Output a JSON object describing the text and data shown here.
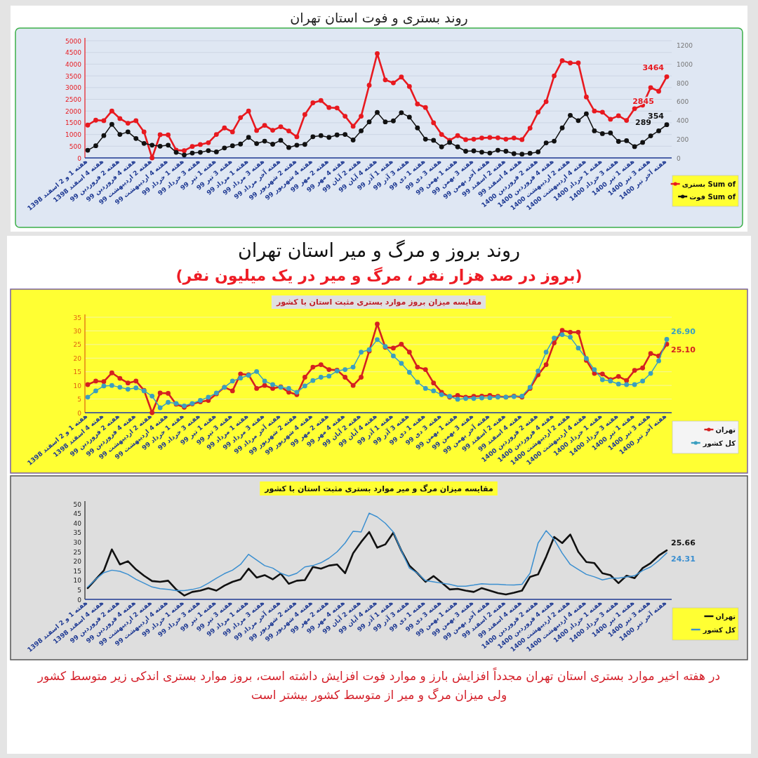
{
  "chart_data": [
    {
      "type": "line",
      "title": "روند بستری و فوت استان تهران",
      "categories": [
        "هفته 1 و 2 اسفند 1398",
        null,
        "هفته 4 اسفند 1398",
        null,
        "هفته 2 فروردین 99",
        null,
        "هفته 4 فروردین 99",
        null,
        "هفته 2 اردیبهشت 99",
        null,
        "هفته 4 اردیبهشت 99",
        null,
        "هفته 1 خرداد 99",
        null,
        "هفته 3 خرداد 99",
        null,
        "هفته 1 تیر 99",
        null,
        "هفته 3 تیر 99",
        null,
        "هفته 1 مرداد 99",
        null,
        "هفته 3 مرداد 99",
        null,
        "هفته آخر مرداد 99",
        null,
        "هفته 2 شهریور 99",
        null,
        "هفته 4 شهریور 99",
        null,
        "هفته 2 مهر 99",
        null,
        "هفته 4 مهر 99",
        null,
        "هفته 2 آبان 99",
        null,
        "هفته 4 آبان 99",
        null,
        "هفته 1 آذر 99",
        null,
        "هفته 3 آذر 99",
        null,
        "هفته 1 دی 99",
        null,
        "هفته 3 دی 99",
        null,
        "هفته 1 بهمن 99",
        null,
        "هفته 3 بهمن 99",
        null,
        "هفته آخر بهمن 99",
        null,
        "هفته 2 اسفند 99",
        null,
        "هفته 4 اسفند 99",
        null,
        "هفته 2 فروردین 1400",
        null,
        "هفته 4 فروردین 1400",
        null,
        "هفته 2 اردیبهشت 1400",
        null,
        "هفته 4 اردیبهشت 1400",
        null,
        "هفته 1 خرداد 1400",
        null,
        "هفته 3 خرداد 1400",
        null,
        "هفته 1 تیر 1400",
        null,
        "هفته 3 تیر 1400",
        null,
        "هفته آخر تیر 1400"
      ],
      "series": [
        {
          "name": "Sum of بستری",
          "color": "#e8191f",
          "values": [
            1400,
            1610,
            1590,
            2000,
            1680,
            1480,
            1590,
            1110,
            0,
            990,
            980,
            330,
            310,
            490,
            570,
            650,
            1000,
            1280,
            1110,
            1720,
            2000,
            1170,
            1390,
            1180,
            1330,
            1150,
            900,
            1850,
            2350,
            2450,
            2150,
            2130,
            1780,
            1350,
            1780,
            3100,
            4450,
            3330,
            3200,
            3450,
            3050,
            2300,
            2150,
            1500,
            1000,
            750,
            950,
            780,
            800,
            850,
            870,
            860,
            800,
            850,
            780,
            1270,
            1950,
            2400,
            3500,
            4150,
            4050,
            4050,
            2600,
            2000,
            1950,
            1650,
            1800,
            1600,
            2100,
            2250,
            3000,
            2845,
            3464
          ],
          "value_labels": [
            null,
            null,
            null,
            null,
            null,
            null,
            null,
            null,
            null,
            null,
            null,
            null,
            null,
            null,
            null,
            null,
            null,
            null,
            null,
            null,
            null,
            null,
            null,
            null,
            null,
            null,
            null,
            null,
            null,
            null,
            null,
            null,
            null,
            null,
            null,
            null,
            null,
            null,
            null,
            null,
            null,
            null,
            null,
            null,
            null,
            null,
            null,
            null,
            null,
            null,
            null,
            null,
            null,
            null,
            null,
            null,
            null,
            null,
            null,
            null,
            null,
            null,
            null,
            null,
            null,
            null,
            null,
            null,
            null,
            null,
            null,
            "2845",
            "3464"
          ]
        },
        {
          "name": "Sum of فوت",
          "color": "#111111",
          "axis": "y2",
          "values": [
            82,
            130,
            238,
            358,
            250,
            278,
            207,
            155,
            136,
            125,
            136,
            59,
            31,
            52,
            59,
            78,
            64,
            106,
            130,
            148,
            219,
            153,
            179,
            146,
            188,
            111,
            136,
            144,
            226,
            238,
            219,
            245,
            250,
            191,
            289,
            384,
            485,
            384,
            395,
            482,
            435,
            320,
            200,
            188,
            118,
            165,
            118,
            71,
            75,
            61,
            52,
            82,
            71,
            45,
            40,
            49,
            64,
            160,
            179,
            320,
            454,
            398,
            471,
            289,
            259,
            266,
            176,
            184,
            120,
            165,
            235,
            289,
            354
          ],
          "value_labels": [
            null,
            null,
            null,
            null,
            null,
            null,
            null,
            null,
            null,
            null,
            null,
            null,
            null,
            null,
            null,
            null,
            null,
            null,
            null,
            null,
            null,
            null,
            null,
            null,
            null,
            null,
            null,
            null,
            null,
            null,
            null,
            null,
            null,
            null,
            null,
            null,
            null,
            null,
            null,
            null,
            null,
            null,
            null,
            null,
            null,
            null,
            null,
            null,
            null,
            null,
            null,
            null,
            null,
            null,
            null,
            null,
            null,
            null,
            null,
            null,
            null,
            null,
            null,
            null,
            null,
            null,
            null,
            null,
            null,
            null,
            null,
            "289",
            "354"
          ]
        }
      ],
      "ylim": [
        0,
        5000
      ],
      "yticks": [
        0,
        500,
        1000,
        1500,
        2000,
        2500,
        3000,
        3500,
        4000,
        4500,
        5000
      ],
      "y2lim": [
        0,
        1250
      ],
      "y2ticks": [
        0,
        200,
        400,
        600,
        800,
        1000,
        1200
      ],
      "grid": "y",
      "legend": "bottom right",
      "marker": "circle"
    },
    {
      "type": "line",
      "title": "روند بروز و مرگ و میر استان تهران",
      "subtitle": "(بروز در صد هزار نفر ، مرگ و میر در یک میلیون نفر)",
      "annotations": [
        "مقایسه میزان بروز موارد بستری مثبت استان با کشور"
      ],
      "categories": [
        "هفته 1 و 2 اسفند 1398",
        null,
        "هفته 4 اسفند 1398",
        null,
        "هفته 2 فروردین 99",
        null,
        "هفته 4 فروردین 99",
        null,
        "هفته 2 اردیبهشت 99",
        null,
        "هفته 4 اردیبهشت 99",
        null,
        "هفته 1 خرداد 99",
        null,
        "هفته 3 خرداد 99",
        null,
        "هفته 1 تیر 99",
        null,
        "هفته 3 تیر 99",
        null,
        "هفته 1 مرداد 99",
        null,
        "هفته 3 مرداد 99",
        null,
        "هفته آخر مرداد 99",
        null,
        "هفته 2 شهریور 99",
        null,
        "هفته 4 شهریور 99",
        null,
        "هفته 2 مهر 99",
        null,
        "هفته 4 مهر 99",
        null,
        "هفته 2 آبان 99",
        null,
        "هفته 4 آبان 99",
        null,
        "هفته 1 آذر 99",
        null,
        "هفته 3 آذر 99",
        null,
        "هفته 1 دی 99",
        null,
        "هفته 3 دی 99",
        null,
        "هفته 1 بهمن 99",
        null,
        "هفته 3 بهمن 99",
        null,
        "هفته آخر بهمن 99",
        null,
        "هفته 2 اسفند 99",
        null,
        "هفته 4 اسفند 99",
        null,
        "هفته 2 فروردین 1400",
        null,
        "هفته 4 فروردین 1400",
        null,
        "هفته 2 اردیبهشت 1400",
        null,
        "هفته 4 اردیبهشت 1400",
        null,
        "هفته 1 خرداد 1400",
        null,
        "هفته 3 خرداد 1400",
        null,
        "هفته 1 تیر 1400",
        null,
        "هفته 3 تیر 1400",
        null,
        "هفته آخر تیر 1400"
      ],
      "series": [
        {
          "name": "تهران",
          "color": "#d42020",
          "values": [
            10.3,
            11.6,
            11.4,
            14.6,
            12.6,
            10.9,
            11.6,
            8.2,
            0,
            7.2,
            7.1,
            3.1,
            2.0,
            3.2,
            4.0,
            4.5,
            6.9,
            9.3,
            8.0,
            14.2,
            13.9,
            8.9,
            10.0,
            8.9,
            9.5,
            7.5,
            6.6,
            13.0,
            16.7,
            17.6,
            15.8,
            15.6,
            13.0,
            10.0,
            13.0,
            22.6,
            32.5,
            24.0,
            23.7,
            25.1,
            22.2,
            16.7,
            15.8,
            10.9,
            7.5,
            5.7,
            6.3,
            5.7,
            6.0,
            6.1,
            6.3,
            6.0,
            5.7,
            6.1,
            5.7,
            8.9,
            13.9,
            17.6,
            25.6,
            30.2,
            29.5,
            29.5,
            19.2,
            14.4,
            14.2,
            12.1,
            13.3,
            11.8,
            15.5,
            16.4,
            21.7,
            20.8,
            25.1
          ],
          "value_labels": [
            null,
            null,
            null,
            null,
            null,
            null,
            null,
            null,
            null,
            null,
            null,
            null,
            null,
            null,
            null,
            null,
            null,
            null,
            null,
            null,
            null,
            null,
            null,
            null,
            null,
            null,
            null,
            null,
            null,
            null,
            null,
            null,
            null,
            null,
            null,
            null,
            null,
            null,
            null,
            null,
            null,
            null,
            null,
            null,
            null,
            null,
            null,
            null,
            null,
            null,
            null,
            null,
            null,
            null,
            null,
            null,
            null,
            null,
            null,
            null,
            null,
            null,
            null,
            null,
            null,
            null,
            null,
            null,
            null,
            null,
            null,
            null,
            "25.10"
          ]
        },
        {
          "name": "کل کشور",
          "color": "#3a9fc0",
          "values": [
            5.7,
            8.0,
            9.8,
            10.0,
            9.3,
            8.6,
            9.1,
            8.0,
            6.1,
            1.8,
            3.8,
            3.4,
            2.5,
            3.4,
            4.5,
            5.7,
            7.2,
            9.3,
            11.6,
            12.7,
            13.7,
            15.1,
            11.6,
            10.3,
            9.3,
            8.9,
            7.5,
            9.8,
            11.8,
            13.0,
            13.4,
            15.3,
            15.8,
            16.7,
            22.2,
            23.1,
            26.8,
            24.3,
            20.8,
            18.1,
            14.8,
            11.2,
            8.9,
            8.0,
            6.6,
            6.0,
            4.9,
            5.2,
            5.2,
            5.4,
            5.5,
            5.7,
            5.7,
            5.9,
            6.1,
            9.3,
            15.3,
            22.2,
            27.4,
            28.6,
            27.7,
            23.7,
            19.9,
            15.8,
            12.1,
            11.6,
            10.5,
            10.3,
            10.3,
            11.6,
            14.4,
            19.0,
            26.9
          ],
          "value_labels": [
            null,
            null,
            null,
            null,
            null,
            null,
            null,
            null,
            null,
            null,
            null,
            null,
            null,
            null,
            null,
            null,
            null,
            null,
            null,
            null,
            null,
            null,
            null,
            null,
            null,
            null,
            null,
            null,
            null,
            null,
            null,
            null,
            null,
            null,
            null,
            null,
            null,
            null,
            null,
            null,
            null,
            null,
            null,
            null,
            null,
            null,
            null,
            null,
            null,
            null,
            null,
            null,
            null,
            null,
            null,
            null,
            null,
            null,
            null,
            null,
            null,
            null,
            null,
            null,
            null,
            null,
            null,
            null,
            null,
            null,
            null,
            null,
            "26.90"
          ]
        }
      ],
      "ylim": [
        0,
        35
      ],
      "yticks": [
        0,
        5,
        10,
        15,
        20,
        25,
        30,
        35
      ],
      "grid": "y",
      "legend": "bottom right",
      "marker": "circle"
    },
    {
      "type": "line",
      "title": "مقایسه میزان مرگ و میر موارد بستری مثبت استان با کشور",
      "annotations": [
        "در هفته اخیر موارد بستری استان تهران مجدداً افزایش بارز و موارد فوت افزایش داشته است، بروز موارد بستری اندکی زیر متوسط کشور ولی میزان مرگ و میر از متوسط کشور بیشتر است"
      ],
      "categories": [
        "هفته 1 و 2 اسفند 1398",
        null,
        "هفته 4 اسفند 1398",
        null,
        "هفته 2 فروردین 99",
        null,
        "هفته 4 فروردین 99",
        null,
        "هفته 2 اردیبهشت 99",
        null,
        "هفته 4 اردیبهشت 99",
        null,
        "هفته 1 خرداد 99",
        null,
        "هفته 3 خرداد 99",
        null,
        "هفته 1 تیر 99",
        null,
        "هفته 3 تیر 99",
        null,
        "هفته 1 مرداد 99",
        null,
        "هفته 3 مرداد 99",
        null,
        "هفته آخر مرداد 99",
        null,
        "هفته 2 شهریور 99",
        null,
        "هفته 4 شهریور 99",
        null,
        "هفته 2 مهر 99",
        null,
        "هفته 4 مهر 99",
        null,
        "هفته 2 آبان 99",
        null,
        "هفته 4 آبان 99",
        null,
        "هفته 1 آذر 99",
        null,
        "هفته 3 آذر 99",
        null,
        "هفته 1 دی 99",
        null,
        "هفته 3 دی 99",
        null,
        "هفته 1 بهمن 99",
        null,
        "هفته 3 بهمن 99",
        null,
        "هفته آخر بهمن 99",
        null,
        "هفته 2 اسفند 99",
        null,
        "هفته 4 اسفند 99",
        null,
        "هفته 2 فروردین 1400",
        null,
        "هفته 4 فروردین 1400",
        null,
        "هفته 2 اردیبهشت 1400",
        null,
        "هفته 4 اردیبهشت 1400",
        null,
        "هفته 1 خرداد 1400",
        null,
        "هفته 3 خرداد 1400",
        null,
        "هفته 1 تیر 1400",
        null,
        "هفته 3 تیر 1400",
        null,
        "هفته آخر تیر 1400"
      ],
      "series": [
        {
          "name": "تهران",
          "color": "#111111",
          "values": [
            5.9,
            10.5,
            15.1,
            26.2,
            18.3,
            20.0,
            15.7,
            12.4,
            9.6,
            9.2,
            9.8,
            5.2,
            2.0,
            3.9,
            4.6,
            5.9,
            4.6,
            7.2,
            9.2,
            10.5,
            16.1,
            11.4,
            12.7,
            10.5,
            13.5,
            8.2,
            9.8,
            10.1,
            17.0,
            16.1,
            17.7,
            18.3,
            13.7,
            24.2,
            30.1,
            35.3,
            27.1,
            28.8,
            34.9,
            25.5,
            17.7,
            13.7,
            9.2,
            12.2,
            8.8,
            5.2,
            5.5,
            4.6,
            3.9,
            5.9,
            4.6,
            3.3,
            2.6,
            3.5,
            4.6,
            11.8,
            13.1,
            22.3,
            32.7,
            29.5,
            34.0,
            24.9,
            19.6,
            19.0,
            13.7,
            12.7,
            8.5,
            12.4,
            11.1,
            16.4,
            19.0,
            22.9,
            25.66
          ],
          "value_labels": [
            null,
            null,
            null,
            null,
            null,
            null,
            null,
            null,
            null,
            null,
            null,
            null,
            null,
            null,
            null,
            null,
            null,
            null,
            null,
            null,
            null,
            null,
            null,
            null,
            null,
            null,
            null,
            null,
            null,
            null,
            null,
            null,
            null,
            null,
            null,
            null,
            null,
            null,
            null,
            null,
            null,
            null,
            null,
            null,
            null,
            null,
            null,
            null,
            null,
            null,
            null,
            null,
            null,
            null,
            null,
            null,
            null,
            null,
            null,
            null,
            null,
            null,
            null,
            null,
            null,
            null,
            null,
            null,
            null,
            null,
            null,
            null,
            "25.66"
          ]
        },
        {
          "name": "کل کشور",
          "color": "#3b8fd0",
          "values": [
            6.5,
            10.5,
            14.0,
            15.3,
            14.7,
            13.1,
            10.5,
            8.5,
            6.5,
            5.6,
            5.2,
            4.6,
            4.6,
            5.2,
            6.2,
            8.5,
            11.1,
            13.5,
            15.3,
            18.3,
            23.6,
            20.6,
            17.7,
            16.4,
            13.7,
            12.2,
            13.7,
            17.0,
            17.7,
            19.2,
            21.6,
            24.9,
            29.5,
            35.7,
            35.3,
            45.2,
            43.2,
            39.9,
            35.3,
            25.5,
            16.4,
            13.7,
            9.8,
            9.2,
            8.5,
            7.9,
            6.9,
            6.9,
            7.5,
            8.2,
            7.9,
            7.9,
            7.6,
            7.5,
            7.9,
            13.7,
            29.5,
            36.0,
            31.4,
            24.2,
            18.3,
            15.7,
            13.1,
            11.8,
            10.2,
            11.1,
            11.1,
            11.8,
            12.4,
            15.1,
            17.0,
            20.3,
            24.31
          ],
          "value_labels": [
            null,
            null,
            null,
            null,
            null,
            null,
            null,
            null,
            null,
            null,
            null,
            null,
            null,
            null,
            null,
            null,
            null,
            null,
            null,
            null,
            null,
            null,
            null,
            null,
            null,
            null,
            null,
            null,
            null,
            null,
            null,
            null,
            null,
            null,
            null,
            null,
            null,
            null,
            null,
            null,
            null,
            null,
            null,
            null,
            null,
            null,
            null,
            null,
            null,
            null,
            null,
            null,
            null,
            null,
            null,
            null,
            null,
            null,
            null,
            null,
            null,
            null,
            null,
            null,
            null,
            null,
            null,
            null,
            null,
            null,
            null,
            null,
            "24.31"
          ]
        }
      ],
      "ylim": [
        0,
        50
      ],
      "yticks": [
        0,
        5,
        10,
        15,
        20,
        25,
        30,
        35,
        40,
        45,
        50
      ],
      "legend": "bottom right"
    }
  ]
}
